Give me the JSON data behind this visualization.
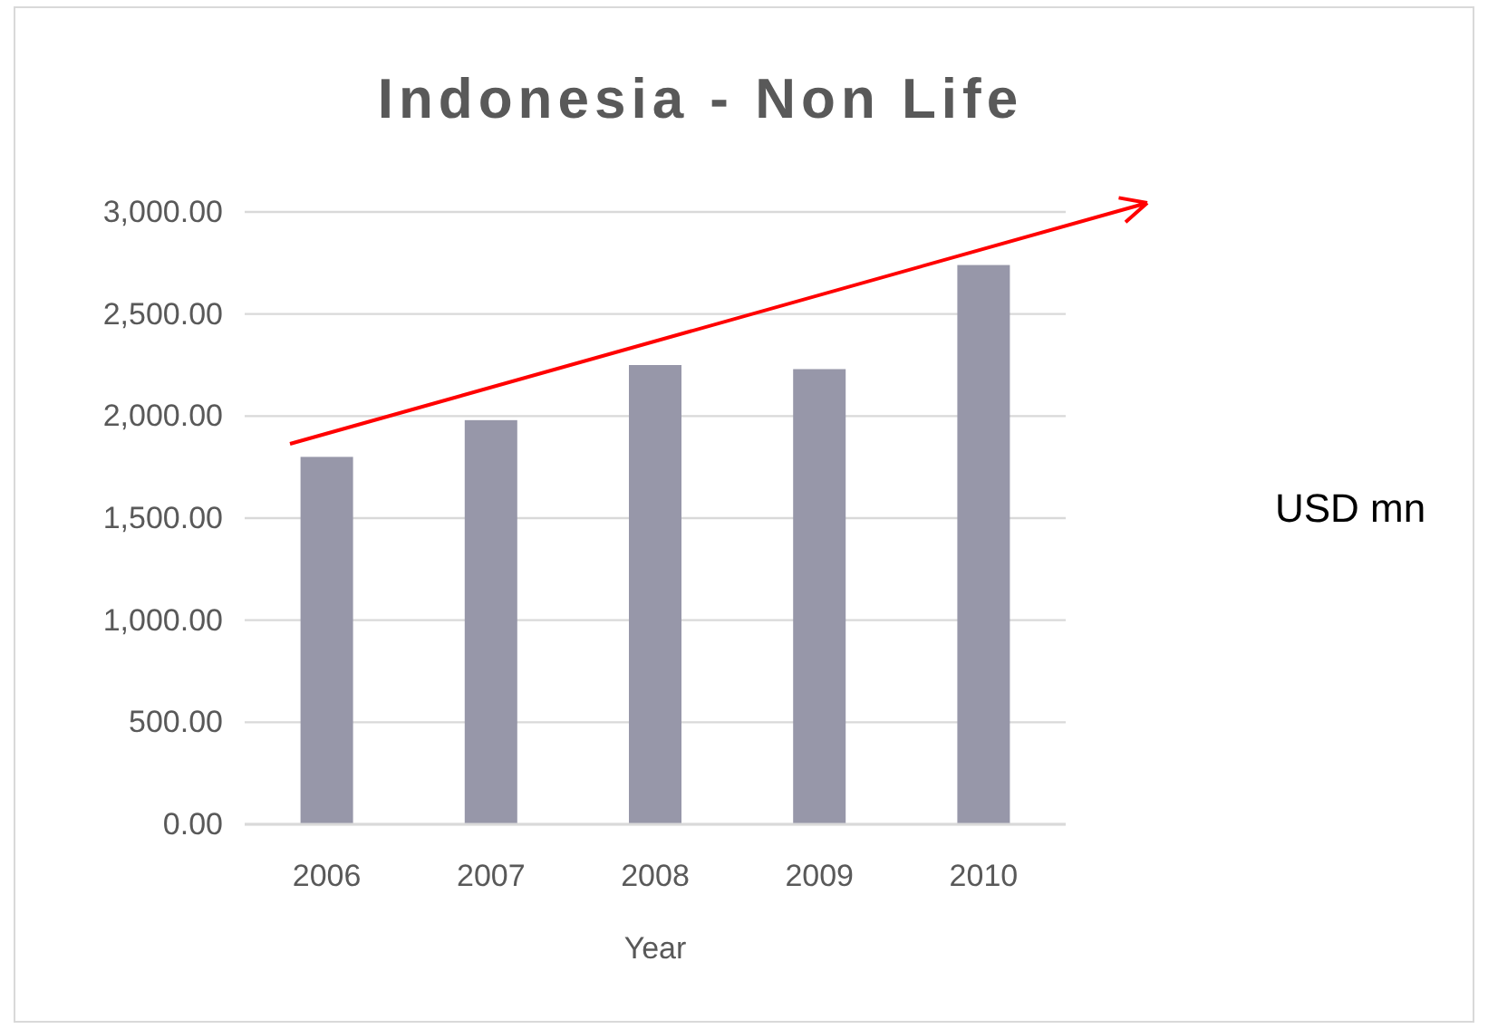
{
  "chart_data": {
    "type": "bar",
    "title": "Indonesia - Non Life",
    "xlabel": "Year",
    "categories": [
      "2006",
      "2007",
      "2008",
      "2009",
      "2010"
    ],
    "values": [
      1800,
      1980,
      2250,
      2230,
      2740
    ],
    "color": "#9797a9",
    "ylim": [
      0,
      3000
    ],
    "yticks": [
      {
        "value": 0,
        "label": "0.00"
      },
      {
        "value": 500,
        "label": "500.00"
      },
      {
        "value": 1000,
        "label": "1,000.00"
      },
      {
        "value": 1500,
        "label": "1,500.00"
      },
      {
        "value": 2000,
        "label": "2,000.00"
      },
      {
        "value": 2500,
        "label": "2,500.00"
      },
      {
        "value": 3000,
        "label": "3,000.00"
      }
    ],
    "grid": "y",
    "annotations": [
      "USD mn"
    ]
  }
}
